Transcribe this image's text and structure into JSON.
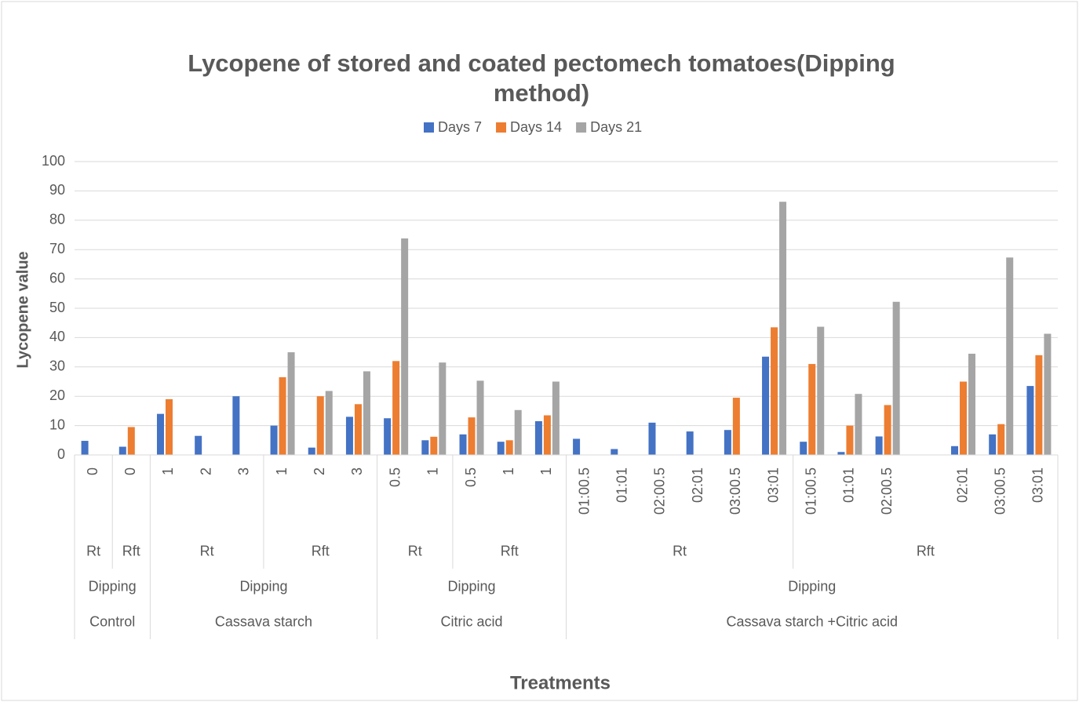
{
  "chart_data": {
    "type": "bar",
    "title": "Lycopene of stored and coated pectomech tomatoes(Dipping method)",
    "x_label": "Treatments",
    "y_label": "Lycopene value",
    "categories": [
      "0",
      "0",
      "1",
      "2",
      "3",
      "1",
      "2",
      "3",
      "0.5",
      "1",
      "0.5",
      "1",
      "1",
      "01:00.5",
      "01:01",
      "02:00.5",
      "02:01",
      "03:00.5",
      "03:01",
      "01:00.5",
      "01:01",
      "02:00.5",
      null,
      "02:01",
      "03:00.5",
      "03:01"
    ],
    "category_levels": [
      [
        "Rt",
        "Rft",
        "Rt",
        null,
        null,
        "Rft",
        null,
        null,
        "Rt",
        null,
        "Rft",
        null,
        null,
        "Rt",
        null,
        null,
        null,
        null,
        null,
        "Rft",
        null,
        null,
        null,
        null,
        null,
        null
      ],
      [
        "Dipping",
        null,
        "Dipping",
        null,
        null,
        null,
        null,
        null,
        "Dipping",
        null,
        null,
        null,
        null,
        "Dipping",
        null,
        null,
        null,
        null,
        null,
        null,
        null,
        null,
        null,
        null,
        null,
        null
      ],
      [
        "Control",
        null,
        "Cassava starch",
        null,
        null,
        null,
        null,
        null,
        "Citric acid",
        null,
        null,
        null,
        null,
        "Cassava starch +Citric acid",
        null,
        null,
        null,
        null,
        null,
        null,
        null,
        null,
        null,
        null,
        null,
        null
      ]
    ],
    "series": [
      {
        "name": "Days 7",
        "color": "#4472c4",
        "values": [
          4.8,
          2.8,
          14,
          6.5,
          20,
          10,
          2.5,
          13,
          12.5,
          5,
          7,
          4.5,
          11.5,
          5.5,
          2,
          11,
          8,
          8.5,
          33.5,
          4.5,
          1,
          6.3,
          null,
          3,
          7,
          23.5
        ]
      },
      {
        "name": "Days 14",
        "color": "#ed7d31",
        "values": [
          null,
          9.5,
          19,
          null,
          null,
          26.5,
          20,
          17.3,
          32,
          6.2,
          12.8,
          5,
          13.5,
          null,
          null,
          null,
          null,
          19.5,
          43.5,
          31,
          10,
          17,
          null,
          25,
          10.5,
          34
        ]
      },
      {
        "name": "Days 21",
        "color": "#a5a5a5",
        "values": [
          null,
          null,
          null,
          null,
          null,
          35,
          21.8,
          28.5,
          73.8,
          31.5,
          25.3,
          15.3,
          25,
          null,
          null,
          null,
          null,
          null,
          86.3,
          43.7,
          20.8,
          52.2,
          null,
          34.5,
          67.3,
          41.3
        ]
      }
    ],
    "ylim": [
      0,
      100
    ],
    "yticks": [
      0,
      10,
      20,
      30,
      40,
      50,
      60,
      70,
      80,
      90,
      100
    ],
    "grid": true,
    "legend": "top"
  }
}
